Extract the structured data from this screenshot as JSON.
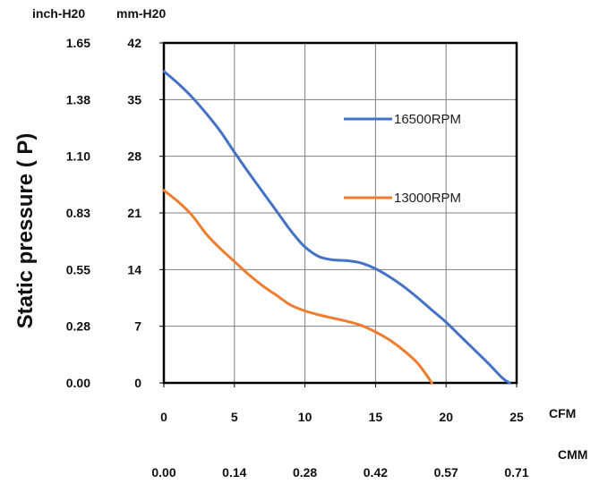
{
  "chart_data": {
    "type": "line",
    "xlabel": "",
    "ylabel": "Static  pressure ( P)",
    "x_unit_primary": "CFM",
    "x_unit_secondary": "CMM",
    "y_unit_primary": "mm-H20",
    "y_unit_secondary": "inch-H20",
    "xlim": [
      0,
      25
    ],
    "ylim": [
      0,
      42
    ],
    "x_ticks": [
      "0",
      "5",
      "10",
      "15",
      "20",
      "25"
    ],
    "x_ticks_secondary": [
      "0.00",
      "0.14",
      "0.28",
      "0.42",
      "0.57",
      "0.71"
    ],
    "y_ticks": [
      "0",
      "7",
      "14",
      "21",
      "28",
      "35",
      "42"
    ],
    "y_ticks_secondary": [
      "0.00",
      "0.28",
      "0.55",
      "0.83",
      "1.10",
      "1.38",
      "1.65"
    ],
    "grid": true,
    "legend_position": "right",
    "series": [
      {
        "name": "16500RPM",
        "color": "#4472C4",
        "x": [
          0,
          1,
          2,
          3,
          4,
          5,
          6,
          7,
          8,
          9,
          10,
          11,
          12,
          13,
          14,
          15,
          16,
          17,
          18,
          19,
          20,
          21,
          22,
          23,
          24,
          24.5
        ],
        "y": [
          38.5,
          37,
          35.3,
          33.3,
          31.1,
          28.5,
          26,
          23.6,
          21.2,
          18.8,
          16.8,
          15.6,
          15.2,
          15.1,
          14.8,
          14.1,
          13.1,
          11.9,
          10.5,
          9.0,
          7.5,
          5.8,
          4.1,
          2.4,
          0.6,
          0
        ]
      },
      {
        "name": "13000RPM",
        "color": "#ED7D31",
        "x": [
          0,
          1,
          2,
          3,
          4,
          5,
          6,
          7,
          8,
          9,
          10,
          11,
          12,
          13,
          14,
          15,
          16,
          17,
          18,
          19
        ],
        "y": [
          23.8,
          22.4,
          20.7,
          18.4,
          16.6,
          15,
          13.4,
          12,
          10.8,
          9.6,
          8.9,
          8.4,
          8.0,
          7.6,
          7.1,
          6.3,
          5.3,
          4.0,
          2.4,
          0
        ]
      }
    ]
  }
}
